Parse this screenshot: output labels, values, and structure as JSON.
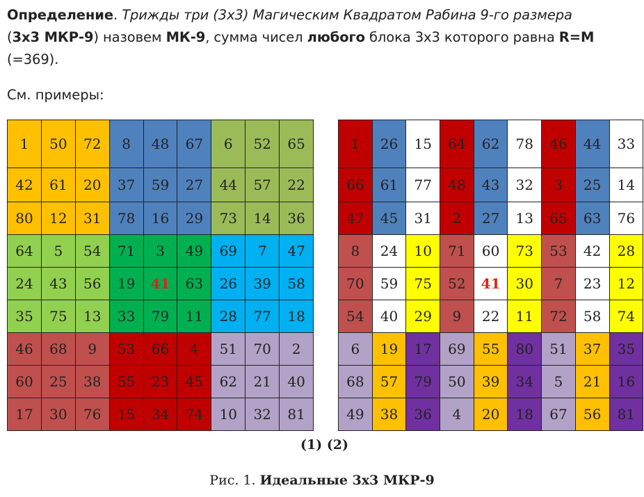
{
  "definition": {
    "label": "Определение",
    "italic_text": "Трижды три (3x3) Магическим Квадратом Рабина 9-го размера",
    "paren_open": "(",
    "abbr": "3x3 МКР-9",
    "text1": ") назовем ",
    "mk": "МК-9",
    "text2": ", сумма чисел ",
    "any": "любого",
    "text3": " блока 3x3 которого равна ",
    "rm": "R=M",
    "text4": " (=369)."
  },
  "examples_label": "См. примеры:",
  "figure_labels": "(1) (2)",
  "caption": {
    "prefix": "Рис. 1. ",
    "title": "Идеальные 3x3 МКР-9"
  },
  "colors": {
    "orange": "#ffc000",
    "steel": "#4f81bd",
    "olive": "#9bbb59",
    "lime": "#92d050",
    "green": "#00b050",
    "cyan": "#00b0f0",
    "brick": "#c0504d",
    "red": "#c00000",
    "lavender": "#b2a2c7",
    "white": "#ffffff",
    "yellow": "#ffff00",
    "purple": "#7030a0",
    "accent_text": "#e0211b"
  },
  "square1": {
    "values": [
      [
        1,
        50,
        72,
        8,
        48,
        67,
        6,
        52,
        65
      ],
      [
        42,
        61,
        20,
        37,
        59,
        27,
        44,
        57,
        22
      ],
      [
        80,
        12,
        31,
        78,
        16,
        29,
        73,
        14,
        36
      ],
      [
        64,
        5,
        54,
        71,
        3,
        49,
        69,
        7,
        47
      ],
      [
        24,
        43,
        56,
        19,
        41,
        63,
        26,
        39,
        58
      ],
      [
        35,
        75,
        13,
        33,
        79,
        11,
        28,
        77,
        18
      ],
      [
        46,
        68,
        9,
        53,
        66,
        4,
        51,
        70,
        2
      ],
      [
        60,
        25,
        38,
        55,
        23,
        45,
        62,
        21,
        40
      ],
      [
        17,
        30,
        76,
        15,
        34,
        74,
        10,
        32,
        81
      ]
    ],
    "block_colors": [
      [
        "orange",
        "steel",
        "olive"
      ],
      [
        "lime",
        "green",
        "cyan"
      ],
      [
        "brick",
        "red",
        "lavender"
      ]
    ],
    "highlight": [
      4,
      4
    ]
  },
  "square2": {
    "values": [
      [
        1,
        26,
        15,
        64,
        62,
        78,
        46,
        44,
        33
      ],
      [
        66,
        61,
        77,
        48,
        43,
        32,
        3,
        25,
        14
      ],
      [
        47,
        45,
        31,
        2,
        27,
        13,
        65,
        63,
        76
      ],
      [
        8,
        24,
        10,
        71,
        60,
        73,
        53,
        42,
        28
      ],
      [
        70,
        59,
        75,
        52,
        41,
        30,
        7,
        23,
        12
      ],
      [
        54,
        40,
        29,
        9,
        22,
        11,
        72,
        58,
        74
      ],
      [
        6,
        19,
        17,
        69,
        55,
        80,
        51,
        37,
        35
      ],
      [
        68,
        57,
        79,
        50,
        39,
        34,
        5,
        21,
        16
      ],
      [
        49,
        38,
        36,
        4,
        20,
        18,
        67,
        56,
        81
      ]
    ],
    "column_pattern_colors": [
      [
        "red",
        "steel",
        "white"
      ],
      [
        "brick",
        "white",
        "yellow"
      ],
      [
        "lavender",
        "orange",
        "purple"
      ]
    ],
    "highlight": [
      4,
      4
    ]
  }
}
